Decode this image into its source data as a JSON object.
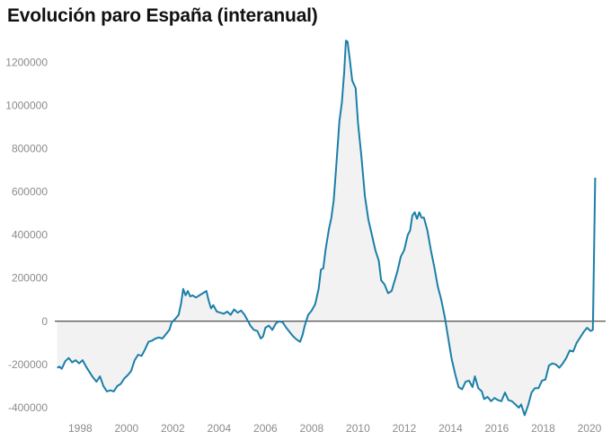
{
  "title": "Evolución paro España (interanual)",
  "colors": {
    "line": "#1b7fa8",
    "area": "#f2f2f2",
    "zero": "#222222",
    "tick": "#8c8c8c"
  },
  "chart_data": {
    "type": "area",
    "title": "Evolución paro España (interanual)",
    "xlabel": "",
    "ylabel": "",
    "xlim": [
      1996.9,
      2020.7
    ],
    "ylim": [
      -450000,
      1330000
    ],
    "grid": false,
    "y_ticks": [
      1200000,
      1000000,
      800000,
      600000,
      400000,
      200000,
      0,
      -200000,
      -400000
    ],
    "x_ticks": [
      1998,
      2000,
      2002,
      2004,
      2006,
      2008,
      2010,
      2012,
      2014,
      2016,
      2018,
      2020
    ],
    "series": [
      {
        "name": "Variación interanual del paro",
        "points": [
          [
            1997.0,
            -215000
          ],
          [
            1997.1,
            -210000
          ],
          [
            1997.2,
            -220000
          ],
          [
            1997.35,
            -185000
          ],
          [
            1997.5,
            -170000
          ],
          [
            1997.65,
            -190000
          ],
          [
            1997.8,
            -180000
          ],
          [
            1997.95,
            -195000
          ],
          [
            1998.1,
            -180000
          ],
          [
            1998.25,
            -210000
          ],
          [
            1998.4,
            -235000
          ],
          [
            1998.55,
            -260000
          ],
          [
            1998.7,
            -280000
          ],
          [
            1998.85,
            -255000
          ],
          [
            1999.0,
            -300000
          ],
          [
            1999.15,
            -325000
          ],
          [
            1999.3,
            -320000
          ],
          [
            1999.45,
            -325000
          ],
          [
            1999.6,
            -300000
          ],
          [
            1999.75,
            -290000
          ],
          [
            1999.9,
            -265000
          ],
          [
            2000.05,
            -250000
          ],
          [
            2000.2,
            -230000
          ],
          [
            2000.35,
            -180000
          ],
          [
            2000.5,
            -155000
          ],
          [
            2000.65,
            -160000
          ],
          [
            2000.8,
            -130000
          ],
          [
            2000.95,
            -95000
          ],
          [
            2001.1,
            -90000
          ],
          [
            2001.25,
            -80000
          ],
          [
            2001.4,
            -75000
          ],
          [
            2001.55,
            -80000
          ],
          [
            2001.7,
            -60000
          ],
          [
            2001.85,
            -40000
          ],
          [
            2001.95,
            -5000
          ],
          [
            2002.1,
            10000
          ],
          [
            2002.25,
            30000
          ],
          [
            2002.35,
            80000
          ],
          [
            2002.45,
            150000
          ],
          [
            2002.55,
            120000
          ],
          [
            2002.65,
            140000
          ],
          [
            2002.75,
            115000
          ],
          [
            2002.85,
            120000
          ],
          [
            2003.0,
            110000
          ],
          [
            2003.15,
            120000
          ],
          [
            2003.3,
            130000
          ],
          [
            2003.45,
            140000
          ],
          [
            2003.55,
            95000
          ],
          [
            2003.65,
            60000
          ],
          [
            2003.75,
            75000
          ],
          [
            2003.9,
            45000
          ],
          [
            2004.05,
            40000
          ],
          [
            2004.2,
            35000
          ],
          [
            2004.35,
            45000
          ],
          [
            2004.5,
            30000
          ],
          [
            2004.65,
            55000
          ],
          [
            2004.8,
            40000
          ],
          [
            2004.95,
            50000
          ],
          [
            2005.1,
            30000
          ],
          [
            2005.25,
            0
          ],
          [
            2005.35,
            -20000
          ],
          [
            2005.5,
            -40000
          ],
          [
            2005.65,
            -45000
          ],
          [
            2005.8,
            -80000
          ],
          [
            2005.9,
            -70000
          ],
          [
            2006.0,
            -30000
          ],
          [
            2006.15,
            -20000
          ],
          [
            2006.3,
            -40000
          ],
          [
            2006.45,
            -10000
          ],
          [
            2006.6,
            0
          ],
          [
            2006.75,
            -5000
          ],
          [
            2006.9,
            -30000
          ],
          [
            2007.05,
            -50000
          ],
          [
            2007.2,
            -70000
          ],
          [
            2007.35,
            -85000
          ],
          [
            2007.5,
            -95000
          ],
          [
            2007.6,
            -65000
          ],
          [
            2007.7,
            -20000
          ],
          [
            2007.85,
            30000
          ],
          [
            2008.0,
            50000
          ],
          [
            2008.15,
            80000
          ],
          [
            2008.3,
            150000
          ],
          [
            2008.4,
            240000
          ],
          [
            2008.5,
            245000
          ],
          [
            2008.6,
            330000
          ],
          [
            2008.75,
            430000
          ],
          [
            2008.85,
            480000
          ],
          [
            2008.95,
            560000
          ],
          [
            2009.05,
            700000
          ],
          [
            2009.2,
            930000
          ],
          [
            2009.3,
            1010000
          ],
          [
            2009.4,
            1150000
          ],
          [
            2009.48,
            1300000
          ],
          [
            2009.55,
            1295000
          ],
          [
            2009.65,
            1210000
          ],
          [
            2009.75,
            1115000
          ],
          [
            2009.9,
            1080000
          ],
          [
            2010.0,
            920000
          ],
          [
            2010.15,
            760000
          ],
          [
            2010.3,
            580000
          ],
          [
            2010.45,
            470000
          ],
          [
            2010.6,
            400000
          ],
          [
            2010.75,
            330000
          ],
          [
            2010.9,
            280000
          ],
          [
            2011.0,
            190000
          ],
          [
            2011.15,
            170000
          ],
          [
            2011.3,
            130000
          ],
          [
            2011.45,
            140000
          ],
          [
            2011.55,
            175000
          ],
          [
            2011.7,
            230000
          ],
          [
            2011.85,
            300000
          ],
          [
            2012.0,
            330000
          ],
          [
            2012.15,
            400000
          ],
          [
            2012.25,
            420000
          ],
          [
            2012.35,
            490000
          ],
          [
            2012.45,
            505000
          ],
          [
            2012.55,
            475000
          ],
          [
            2012.65,
            505000
          ],
          [
            2012.75,
            480000
          ],
          [
            2012.85,
            480000
          ],
          [
            2013.0,
            420000
          ],
          [
            2013.15,
            330000
          ],
          [
            2013.3,
            250000
          ],
          [
            2013.45,
            160000
          ],
          [
            2013.6,
            100000
          ],
          [
            2013.75,
            20000
          ],
          [
            2013.9,
            -80000
          ],
          [
            2014.05,
            -175000
          ],
          [
            2014.2,
            -245000
          ],
          [
            2014.35,
            -305000
          ],
          [
            2014.5,
            -315000
          ],
          [
            2014.65,
            -280000
          ],
          [
            2014.8,
            -275000
          ],
          [
            2014.95,
            -305000
          ],
          [
            2015.05,
            -255000
          ],
          [
            2015.2,
            -310000
          ],
          [
            2015.35,
            -325000
          ],
          [
            2015.45,
            -360000
          ],
          [
            2015.6,
            -350000
          ],
          [
            2015.75,
            -370000
          ],
          [
            2015.9,
            -355000
          ],
          [
            2016.05,
            -365000
          ],
          [
            2016.2,
            -370000
          ],
          [
            2016.35,
            -330000
          ],
          [
            2016.5,
            -365000
          ],
          [
            2016.65,
            -370000
          ],
          [
            2016.8,
            -385000
          ],
          [
            2016.95,
            -400000
          ],
          [
            2017.05,
            -385000
          ],
          [
            2017.2,
            -435000
          ],
          [
            2017.35,
            -390000
          ],
          [
            2017.5,
            -330000
          ],
          [
            2017.65,
            -310000
          ],
          [
            2017.8,
            -310000
          ],
          [
            2017.95,
            -275000
          ],
          [
            2018.1,
            -270000
          ],
          [
            2018.25,
            -205000
          ],
          [
            2018.4,
            -195000
          ],
          [
            2018.55,
            -200000
          ],
          [
            2018.7,
            -215000
          ],
          [
            2018.85,
            -195000
          ],
          [
            2019.0,
            -170000
          ],
          [
            2019.15,
            -135000
          ],
          [
            2019.3,
            -140000
          ],
          [
            2019.45,
            -100000
          ],
          [
            2019.6,
            -75000
          ],
          [
            2019.75,
            -50000
          ],
          [
            2019.9,
            -30000
          ],
          [
            2020.05,
            -45000
          ],
          [
            2020.15,
            -40000
          ],
          [
            2020.25,
            665000
          ]
        ]
      }
    ]
  }
}
